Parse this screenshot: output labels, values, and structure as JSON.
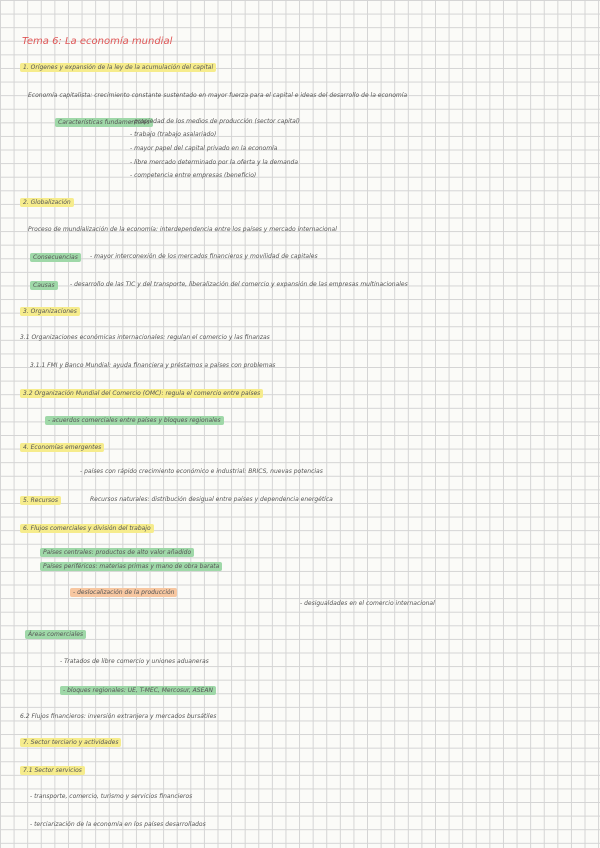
{
  "header": {
    "title": "Tema 6: La economía mundial"
  },
  "sections": [
    {
      "heading": "1. Orígenes y expansión de la ley de la acumulación del capital",
      "lines": [
        "Economía capitalista: crecimiento constante sustentado en mayor fuerza para el capital e ideas del desarrollo de la economía",
        "Características fundamentales",
        "- propiedad de los medios de producción (sector capital)",
        "- trabajo (trabajo asalariado)",
        "- mayor papel del capital privado en la economía",
        "- libre mercado determinado por la oferta y la demanda",
        "- competencia entre empresas (beneficio)"
      ]
    },
    {
      "heading": "2. Globalización",
      "lines": [
        "Proceso de mundialización de la economía: interdependencia entre los países y mercado internacional",
        "Consecuencias",
        "- mayor interconexión de los mercados financieros y movilidad de capitales",
        "Causas",
        "- desarrollo de las TIC y del transporte, liberalización del comercio y expansión de las empresas multinacionales"
      ]
    },
    {
      "heading": "3. Organizaciones",
      "lines": [
        "3.1 Organizaciones económicas internacionales: regulan el comercio y las finanzas",
        "3.1.1 FMI y Banco Mundial: ayuda financiera y préstamos a países con problemas",
        "3.2 Organización Mundial del Comercio (OMC): regula el comercio entre países",
        "- acuerdos comerciales entre países y bloques regionales"
      ]
    },
    {
      "heading": "4. Economías emergentes",
      "lines": [
        "- países con rápido crecimiento económico e industrial: BRICS, nuevas potencias"
      ]
    },
    {
      "heading": "5. Recursos",
      "lines": [
        "Recursos naturales: distribución desigual entre países y dependencia energética"
      ]
    },
    {
      "heading": "6. Flujos comerciales y división del trabajo",
      "lines": [
        "Países centrales: productos de alto valor añadido",
        "Países periféricos: materias primas y mano de obra barata",
        "- deslocalización de la producción",
        "- desigualdades en el comercio internacional",
        "Áreas comerciales",
        "- Tratados de libre comercio y uniones aduaneras",
        "- bloques regionales: UE, T-MEC, Mercosur, ASEAN",
        "6.2 Flujos financieros: inversión extranjera y mercados bursátiles"
      ]
    },
    {
      "heading": "7. Sector terciario y actividades",
      "lines": [
        "7.1 Sector servicios",
        "- transporte, comercio, turismo y servicios financieros",
        "- terciarización de la economía en los países desarrollados"
      ]
    }
  ]
}
